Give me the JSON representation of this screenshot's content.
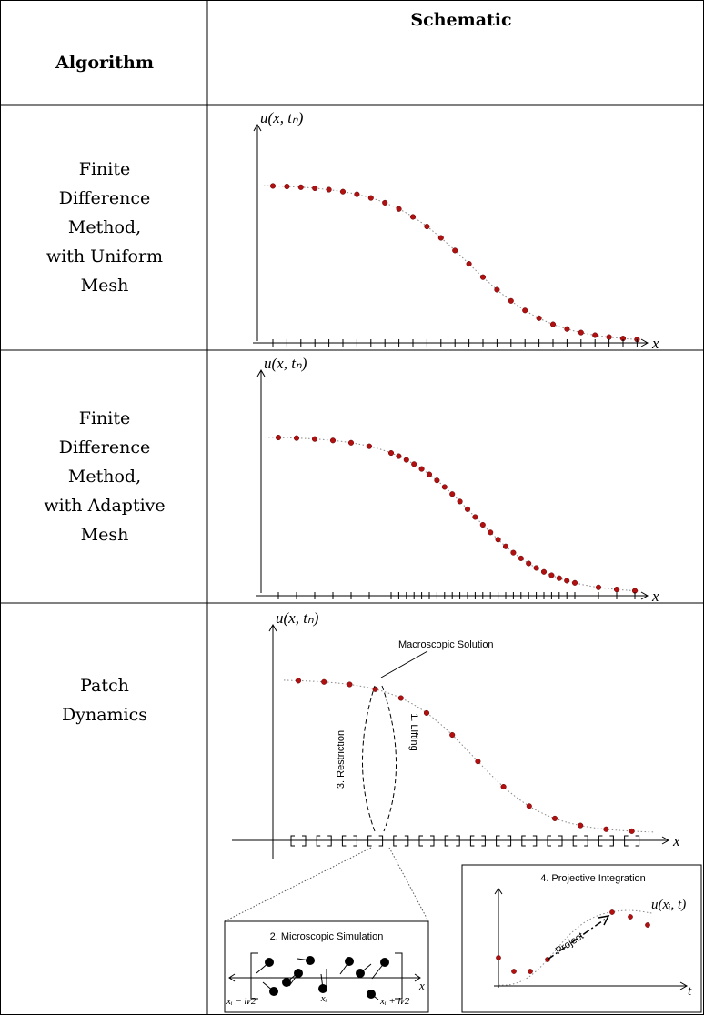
{
  "table": {
    "header": [
      "Algorithm",
      "Schematic"
    ],
    "rows": [
      {
        "algorithm": [
          "Finite",
          "Difference",
          "Method,",
          "with Uniform",
          "Mesh"
        ],
        "y_axis": "u(x, tₙ)",
        "x_axis": "x"
      },
      {
        "algorithm": [
          "Finite",
          "Difference",
          "Method,",
          "with Adaptive",
          "Mesh"
        ],
        "y_axis": "u(x, tₙ)",
        "x_axis": "x"
      },
      {
        "algorithm": [
          "Patch",
          "Dynamics"
        ],
        "y_axis": "u(x, tₙ)",
        "x_axis": "x",
        "annotations": {
          "macroscopic": "Macroscopic Solution",
          "restriction": "3. Restriction",
          "lifting": "1. Lifting",
          "micro": {
            "title": "2. Microscopic Simulation",
            "x_axis": "x",
            "left": "xᵢ − h⁄2",
            "center": "xᵢ",
            "right": "xᵢ + h⁄2"
          },
          "projective": {
            "title": "4. Projective Integration",
            "arrow": "Project",
            "curve": "u(xᵢ, t)",
            "x_axis": "t"
          }
        }
      }
    ]
  }
}
